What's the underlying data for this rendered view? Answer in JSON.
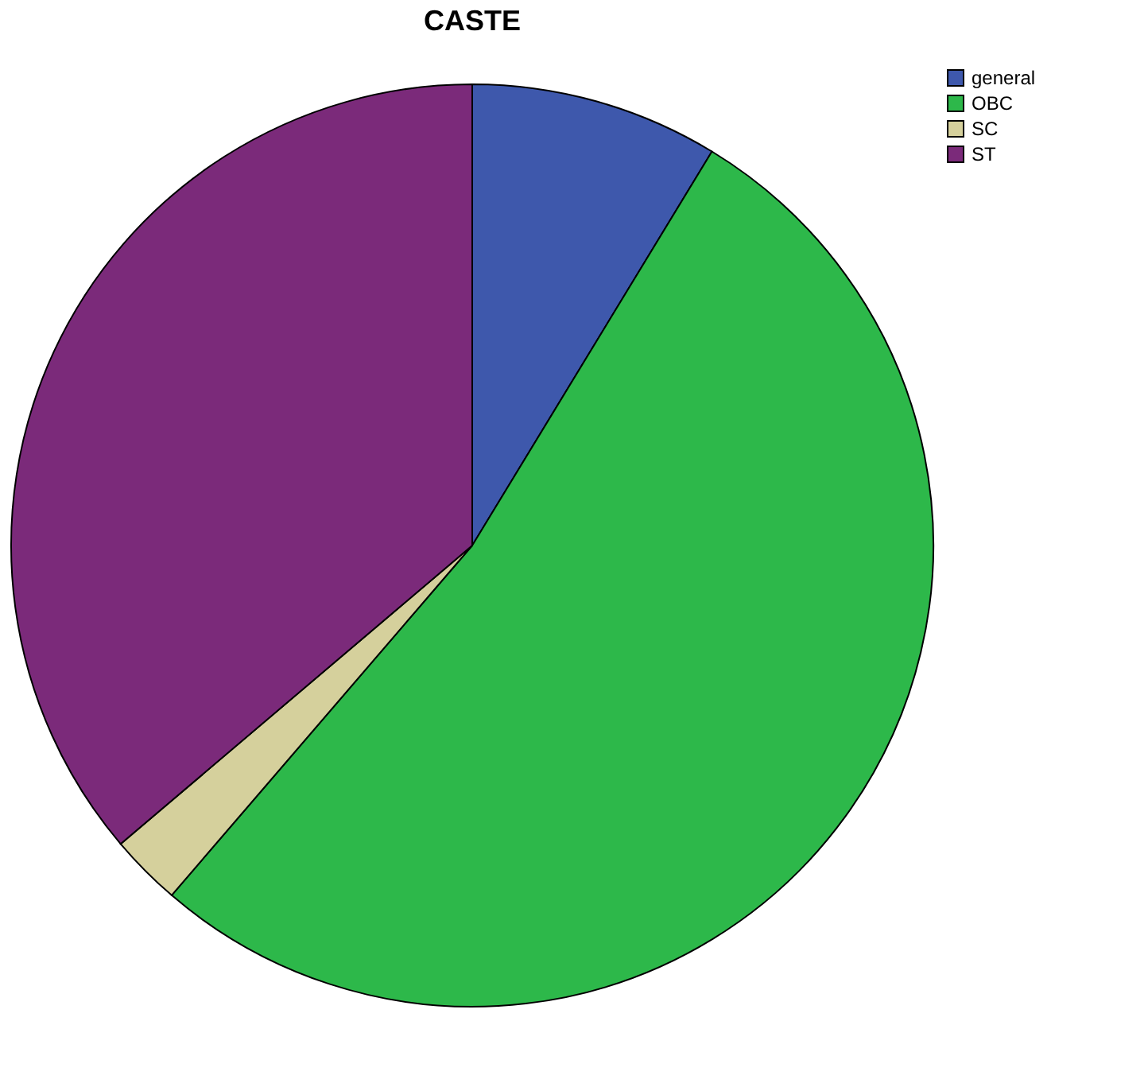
{
  "chart_data": {
    "type": "pie",
    "title": "CASTE",
    "categories": [
      "general",
      "OBC",
      "SC",
      "ST"
    ],
    "values": [
      8.7,
      52.6,
      2.5,
      36.2
    ],
    "colors": [
      "#3e58ac",
      "#2db84a",
      "#d5d09c",
      "#7b2a7a"
    ],
    "legend": "top right"
  }
}
